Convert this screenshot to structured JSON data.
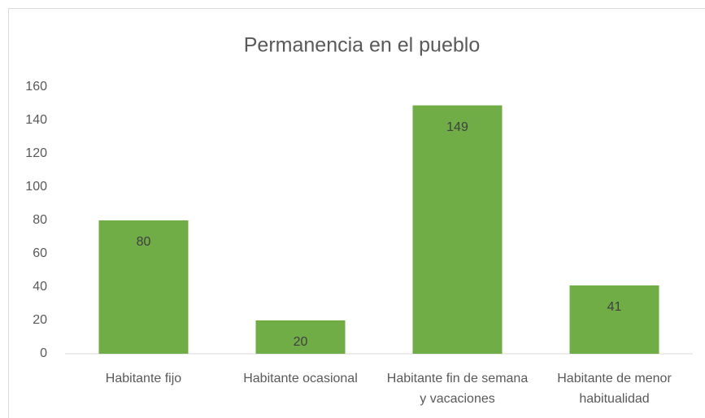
{
  "chart_data": {
    "type": "bar",
    "title": "Permanencia en el pueblo",
    "categories": [
      "Habitante fijo",
      "Habitante ocasional",
      "Habitante fin de semana y vacaciones",
      "Habitante de menor habitualidad"
    ],
    "values": [
      80,
      20,
      149,
      41
    ],
    "color": "#70ad47",
    "ylim": [
      0,
      160
    ],
    "yticks": [
      0,
      20,
      40,
      60,
      80,
      100,
      120,
      140,
      160
    ],
    "grid": false
  }
}
